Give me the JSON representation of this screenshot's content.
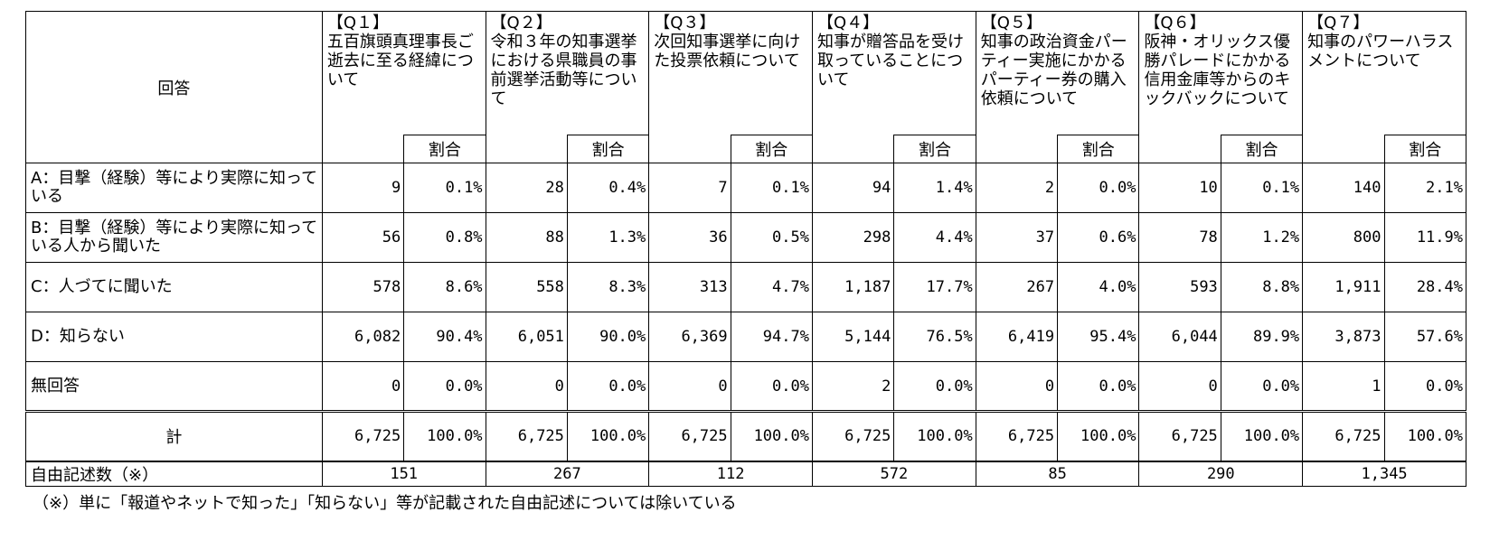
{
  "header": {
    "answer_label": "回答",
    "ratio_label": "割合",
    "questions": [
      {
        "num": "【Q１】",
        "title": "五百旗頭真理事長ご逝去に至る経緯について"
      },
      {
        "num": "【Q２】",
        "title": "令和３年の知事選挙における県職員の事前選挙活動等について"
      },
      {
        "num": "【Q３】",
        "title": "次回知事選挙に向けた投票依頼について"
      },
      {
        "num": "【Q４】",
        "title": "知事が贈答品を受け取っていることについて"
      },
      {
        "num": "【Q５】",
        "title": "知事の政治資金パーティー実施にかかるパーティー券の購入依頼について"
      },
      {
        "num": "【Q６】",
        "title": "阪神・オリックス優勝パレードにかかる信用金庫等からのキックバックについて"
      },
      {
        "num": "【Q７】",
        "title": "知事のパワーハラスメントについて"
      }
    ]
  },
  "rows": [
    {
      "label": "A：目撃（経験）等により実際に知っている",
      "cells": [
        [
          "9",
          "0.1%"
        ],
        [
          "28",
          "0.4%"
        ],
        [
          "7",
          "0.1%"
        ],
        [
          "94",
          "1.4%"
        ],
        [
          "2",
          "0.0%"
        ],
        [
          "10",
          "0.1%"
        ],
        [
          "140",
          "2.1%"
        ]
      ]
    },
    {
      "label": "B：目撃（経験）等により実際に知っている人から聞いた",
      "cells": [
        [
          "56",
          "0.8%"
        ],
        [
          "88",
          "1.3%"
        ],
        [
          "36",
          "0.5%"
        ],
        [
          "298",
          "4.4%"
        ],
        [
          "37",
          "0.6%"
        ],
        [
          "78",
          "1.2%"
        ],
        [
          "800",
          "11.9%"
        ]
      ]
    },
    {
      "label": "C：人づてに聞いた",
      "cells": [
        [
          "578",
          "8.6%"
        ],
        [
          "558",
          "8.3%"
        ],
        [
          "313",
          "4.7%"
        ],
        [
          "1,187",
          "17.7%"
        ],
        [
          "267",
          "4.0%"
        ],
        [
          "593",
          "8.8%"
        ],
        [
          "1,911",
          "28.4%"
        ]
      ]
    },
    {
      "label": "D：知らない",
      "cells": [
        [
          "6,082",
          "90.4%"
        ],
        [
          "6,051",
          "90.0%"
        ],
        [
          "6,369",
          "94.7%"
        ],
        [
          "5,144",
          "76.5%"
        ],
        [
          "6,419",
          "95.4%"
        ],
        [
          "6,044",
          "89.9%"
        ],
        [
          "3,873",
          "57.6%"
        ]
      ]
    },
    {
      "label": "無回答",
      "cells": [
        [
          "0",
          "0.0%"
        ],
        [
          "0",
          "0.0%"
        ],
        [
          "0",
          "0.0%"
        ],
        [
          "2",
          "0.0%"
        ],
        [
          "0",
          "0.0%"
        ],
        [
          "0",
          "0.0%"
        ],
        [
          "1",
          "0.0%"
        ]
      ]
    }
  ],
  "total": {
    "label": "計",
    "cells": [
      [
        "6,725",
        "100.0%"
      ],
      [
        "6,725",
        "100.0%"
      ],
      [
        "6,725",
        "100.0%"
      ],
      [
        "6,725",
        "100.0%"
      ],
      [
        "6,725",
        "100.0%"
      ],
      [
        "6,725",
        "100.0%"
      ],
      [
        "6,725",
        "100.0%"
      ]
    ]
  },
  "free_text": {
    "label": "自由記述数（※）",
    "values": [
      "151",
      "267",
      "112",
      "572",
      "85",
      "290",
      "1,345"
    ]
  },
  "footnote": "（※）単に「報道やネットで知った」「知らない」等が記載された自由記述については除いている"
}
